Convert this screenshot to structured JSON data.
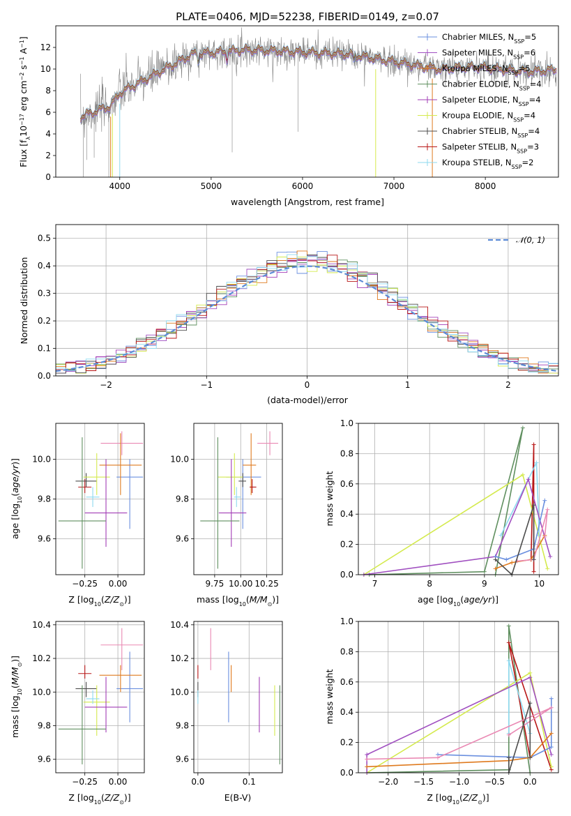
{
  "page": {
    "title": "PLATE=0406, MJD=52238, FIBERID=0149, z=0.07"
  },
  "colors": [
    "#6a8fdf",
    "#a04fc0",
    "#df7a1e",
    "#5f8f5f",
    "#a23cb6",
    "#d4ea4d",
    "#4d4d4d",
    "#b81616",
    "#8ed9ef",
    "#ea88b3"
  ],
  "chart_data": [
    {
      "id": "spectrum",
      "type": "line",
      "title": "PLATE=0406, MJD=52238, FIBERID=0149, z=0.07",
      "xlabel": "wavelength [Angstrom, rest frame]",
      "ylabel": "Flux [f_λ 10^-17 erg cm^-2 s^-1 A^-1]",
      "xlim": [
        3300,
        8800
      ],
      "ylim": [
        0,
        14
      ],
      "xticks": [
        4000,
        5000,
        6000,
        7000,
        8000
      ],
      "yticks": [
        0,
        2,
        4,
        6,
        8,
        10,
        12
      ],
      "legend": "top-right",
      "series": [
        {
          "name": "Chabrier MILES, N_SSP=5"
        },
        {
          "name": "Salpeter MILES, N_SSP=6"
        },
        {
          "name": "Kroupa MILES, N_SSP=5"
        },
        {
          "name": "Chabrier ELODIE, N_SSP=4"
        },
        {
          "name": "Salpeter ELODIE, N_SSP=4"
        },
        {
          "name": "Kroupa ELODIE, N_SSP=4"
        },
        {
          "name": "Chabrier STELIB, N_SSP=4"
        },
        {
          "name": "Salpeter STELIB, N_SSP=3"
        },
        {
          "name": "Kroupa STELIB, N_SSP=2"
        }
      ]
    },
    {
      "id": "residuals",
      "type": "line",
      "xlabel": "(data-model)/error",
      "ylabel": "Normed distribution",
      "xlim": [
        -2.5,
        2.5
      ],
      "ylim": [
        0,
        0.55
      ],
      "xticks": [
        -2,
        -1,
        0,
        1,
        2
      ],
      "yticks": [
        0.0,
        0.1,
        0.2,
        0.3,
        0.4,
        0.5
      ],
      "grid": true,
      "legend": "top-right",
      "legend_label": "𝒩(0, 1)"
    },
    {
      "id": "age-vs-z",
      "type": "scatter",
      "xlabel": "Z [log10(Z/Z⊙)]",
      "ylabel": "age  [log10(age/yr)]",
      "xlim": [
        -0.47,
        0.2
      ],
      "ylim": [
        9.42,
        10.18
      ],
      "xticks": [
        -0.25,
        0.0
      ],
      "yticks": [
        9.6,
        9.8,
        10.0
      ],
      "grid": true
    },
    {
      "id": "age-vs-mass",
      "type": "scatter",
      "xlabel": "mass [log10(M/M⊙)]",
      "xlim": [
        9.55,
        10.4
      ],
      "ylim": [
        9.42,
        10.18
      ],
      "xticks": [
        9.75,
        10.0,
        10.25
      ],
      "yticks": [
        9.6,
        9.8,
        10.0
      ],
      "grid": true
    },
    {
      "id": "weight-vs-age",
      "type": "line",
      "xlabel": "age  [log10(age/yr)]",
      "ylabel": "mass weight",
      "xlim": [
        6.7,
        10.35
      ],
      "ylim": [
        0,
        1
      ],
      "xticks": [
        7,
        8,
        9,
        10
      ],
      "yticks": [
        0.0,
        0.2,
        0.4,
        0.6,
        0.8,
        1.0
      ],
      "grid": true
    },
    {
      "id": "mass-vs-z",
      "type": "scatter",
      "xlabel": "Z [log10(Z/Z⊙)]",
      "ylabel": "mass [log10(M/M⊙)]",
      "xlim": [
        -0.47,
        0.2
      ],
      "ylim": [
        9.52,
        10.42
      ],
      "xticks": [
        -0.25,
        0.0
      ],
      "yticks": [
        9.6,
        9.8,
        10.0,
        10.2,
        10.4
      ],
      "grid": true
    },
    {
      "id": "mass-vs-ebv",
      "type": "scatter",
      "xlabel": "E(B-V)",
      "xlim": [
        -0.008,
        0.165
      ],
      "ylim": [
        9.52,
        10.42
      ],
      "xticks": [
        0.0,
        0.1
      ],
      "yticks": [
        9.6,
        9.8,
        10.0,
        10.2,
        10.4
      ],
      "grid": true
    },
    {
      "id": "weight-vs-z",
      "type": "line",
      "xlabel": "Z [log10(Z/Z⊙)]",
      "ylabel": "mass weight",
      "xlim": [
        -2.42,
        0.4
      ],
      "ylim": [
        0,
        1
      ],
      "xticks": [
        -2.0,
        -1.5,
        -1.0,
        -0.5,
        0.0
      ],
      "yticks": [
        0.0,
        0.2,
        0.4,
        0.6,
        0.8,
        1.0
      ],
      "grid": true
    }
  ]
}
